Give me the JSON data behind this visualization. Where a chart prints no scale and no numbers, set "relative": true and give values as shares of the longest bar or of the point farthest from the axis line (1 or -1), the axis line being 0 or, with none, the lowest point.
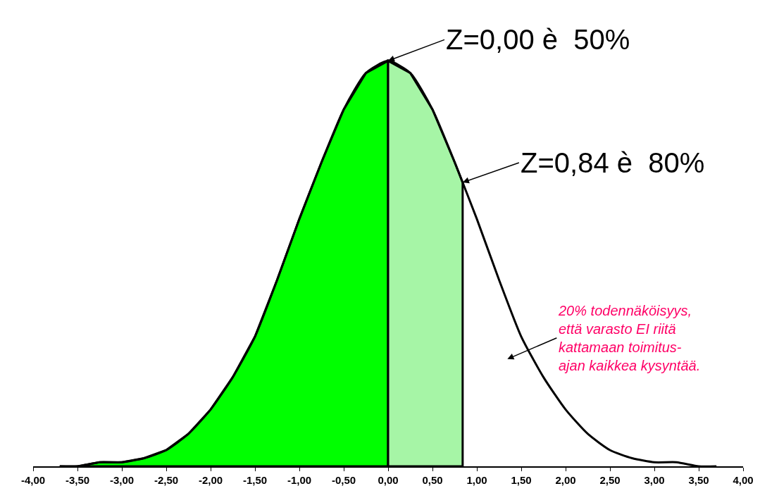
{
  "chart_data": {
    "type": "area",
    "relative": true,
    "grid": false,
    "marker": "none",
    "xlim": [
      -4,
      4
    ],
    "xticks": [
      {
        "value": -4,
        "label": "-4,00"
      },
      {
        "value": -3.5,
        "label": "-3,50"
      },
      {
        "value": -3,
        "label": "-3,00"
      },
      {
        "value": -2.5,
        "label": "-2,50"
      },
      {
        "value": -2,
        "label": "-2,00"
      },
      {
        "value": -1.5,
        "label": "-1,50"
      },
      {
        "value": -1,
        "label": "-1,00"
      },
      {
        "value": -0.5,
        "label": "-0,50"
      },
      {
        "value": 0,
        "label": "0,00"
      },
      {
        "value": 0.5,
        "label": "0,50"
      },
      {
        "value": 1,
        "label": "1,00"
      },
      {
        "value": 1.5,
        "label": "1,50"
      },
      {
        "value": 2,
        "label": "2,00"
      },
      {
        "value": 2.5,
        "label": "2,50"
      },
      {
        "value": 3,
        "label": "3,00"
      },
      {
        "value": 3.5,
        "label": "3,50"
      },
      {
        "value": 4,
        "label": "4,00"
      }
    ],
    "series": [
      {
        "color": "#00ff00",
        "x": [
          -3.7,
          -3.5,
          -3.25,
          -3,
          -2.75,
          -2.5,
          -2.25,
          -2,
          -1.75,
          -1.5,
          -1.25,
          -1,
          -0.75,
          -0.5,
          -0.25,
          0
        ],
        "values": [
          0,
          0,
          0.01,
          0.01,
          0.02,
          0.04,
          0.08,
          0.14,
          0.22,
          0.32,
          0.46,
          0.61,
          0.75,
          0.88,
          0.97,
          1
        ]
      },
      {
        "color": "#a6f5a6",
        "x": [
          0,
          0.25,
          0.5,
          0.75,
          0.84
        ],
        "values": [
          1,
          0.97,
          0.88,
          0.75,
          0.7
        ]
      },
      {
        "type": "line",
        "color": "#000000",
        "x": [
          -3.7,
          -3.5,
          -3.25,
          -3,
          -2.75,
          -2.5,
          -2.25,
          -2,
          -1.75,
          -1.5,
          -1.25,
          -1,
          -0.75,
          -0.5,
          -0.25,
          0,
          0.25,
          0.5,
          0.75,
          0.84,
          1,
          1.25,
          1.5,
          1.75,
          2,
          2.25,
          2.5,
          2.75,
          3,
          3.25,
          3.5,
          3.7
        ],
        "values": [
          0,
          0,
          0.01,
          0.01,
          0.02,
          0.04,
          0.08,
          0.14,
          0.22,
          0.32,
          0.46,
          0.61,
          0.75,
          0.88,
          0.97,
          1,
          0.97,
          0.88,
          0.75,
          0.7,
          0.61,
          0.46,
          0.32,
          0.22,
          0.14,
          0.08,
          0.04,
          0.02,
          0.01,
          0.01,
          0,
          0
        ]
      }
    ],
    "annotations": [
      {
        "text": "Z=0,00 è  50%",
        "x": 0,
        "y": 1
      },
      {
        "text": "Z=0,84 è  80%",
        "x": 0.84,
        "y": 0.7
      },
      "20% todennäköisyys,\nettä varasto EI riitä\nkattamaan toimitus-\najan kaikkea kysyntää."
    ]
  }
}
